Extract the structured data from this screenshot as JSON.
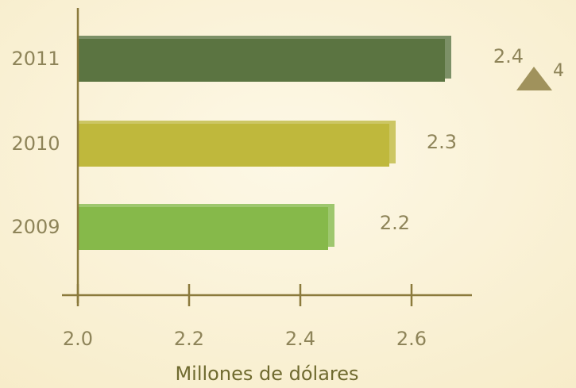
{
  "chart_data": {
    "type": "bar",
    "orientation": "horizontal",
    "categories": [
      "2011",
      "2010",
      "2009"
    ],
    "values": [
      2.66,
      2.56,
      2.45
    ],
    "colors": [
      "#5b7441",
      "#bfb83c",
      "#86b94a"
    ],
    "xlim": [
      2.0,
      2.7
    ],
    "xticks": [
      {
        "value": 2.0,
        "label": "2.0"
      },
      2.2,
      2.4,
      2.6
    ],
    "xlabel": "Millones de dólares",
    "annotations": [
      "2.4",
      "2.3",
      "2.2",
      "4"
    ]
  }
}
